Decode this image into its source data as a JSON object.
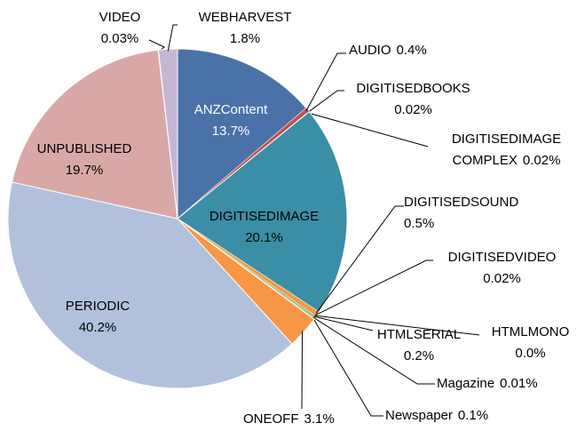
{
  "chart_data": {
    "type": "pie",
    "categories": [
      "ANZContent",
      "AUDIO",
      "DIGITISEDBOOKS",
      "DIGITISEDIMAGE COMPLEX",
      "DIGITISEDIMAGE",
      "DIGITISEDSOUND",
      "DIGITISEDVIDEO",
      "HTMLMONO",
      "HTMLSERIAL",
      "Magazine",
      "Newspaper",
      "ONEOFF",
      "PERIODIC",
      "UNPUBLISHED",
      "VIDEO",
      "WEBHARVEST"
    ],
    "values": [
      13.7,
      0.4,
      0.02,
      0.02,
      20.1,
      0.5,
      0.02,
      0.0,
      0.2,
      0.01,
      0.1,
      3.1,
      40.2,
      19.7,
      0.03,
      1.8
    ],
    "value_labels": [
      "13.7%",
      "0.4%",
      "0.02%",
      "0.02%",
      "20.1%",
      "0.5%",
      "0.02%",
      "0.0%",
      "0.2%",
      "0.01%",
      "0.1%",
      "3.1%",
      "40.2%",
      "19.7%",
      "0.03%",
      "1.8%"
    ],
    "colors": [
      "#4a72a8",
      "#c0504d",
      "#9bbb59",
      "#8064a2",
      "#3a8ea5",
      "#f79646",
      "#4f81bd",
      "#c0504d",
      "#9bbb59",
      "#8064a2",
      "#4bacc6",
      "#f79646",
      "#b1c1dc",
      "#d9a8a6",
      "#c6e0b4",
      "#c4b7d6"
    ]
  }
}
